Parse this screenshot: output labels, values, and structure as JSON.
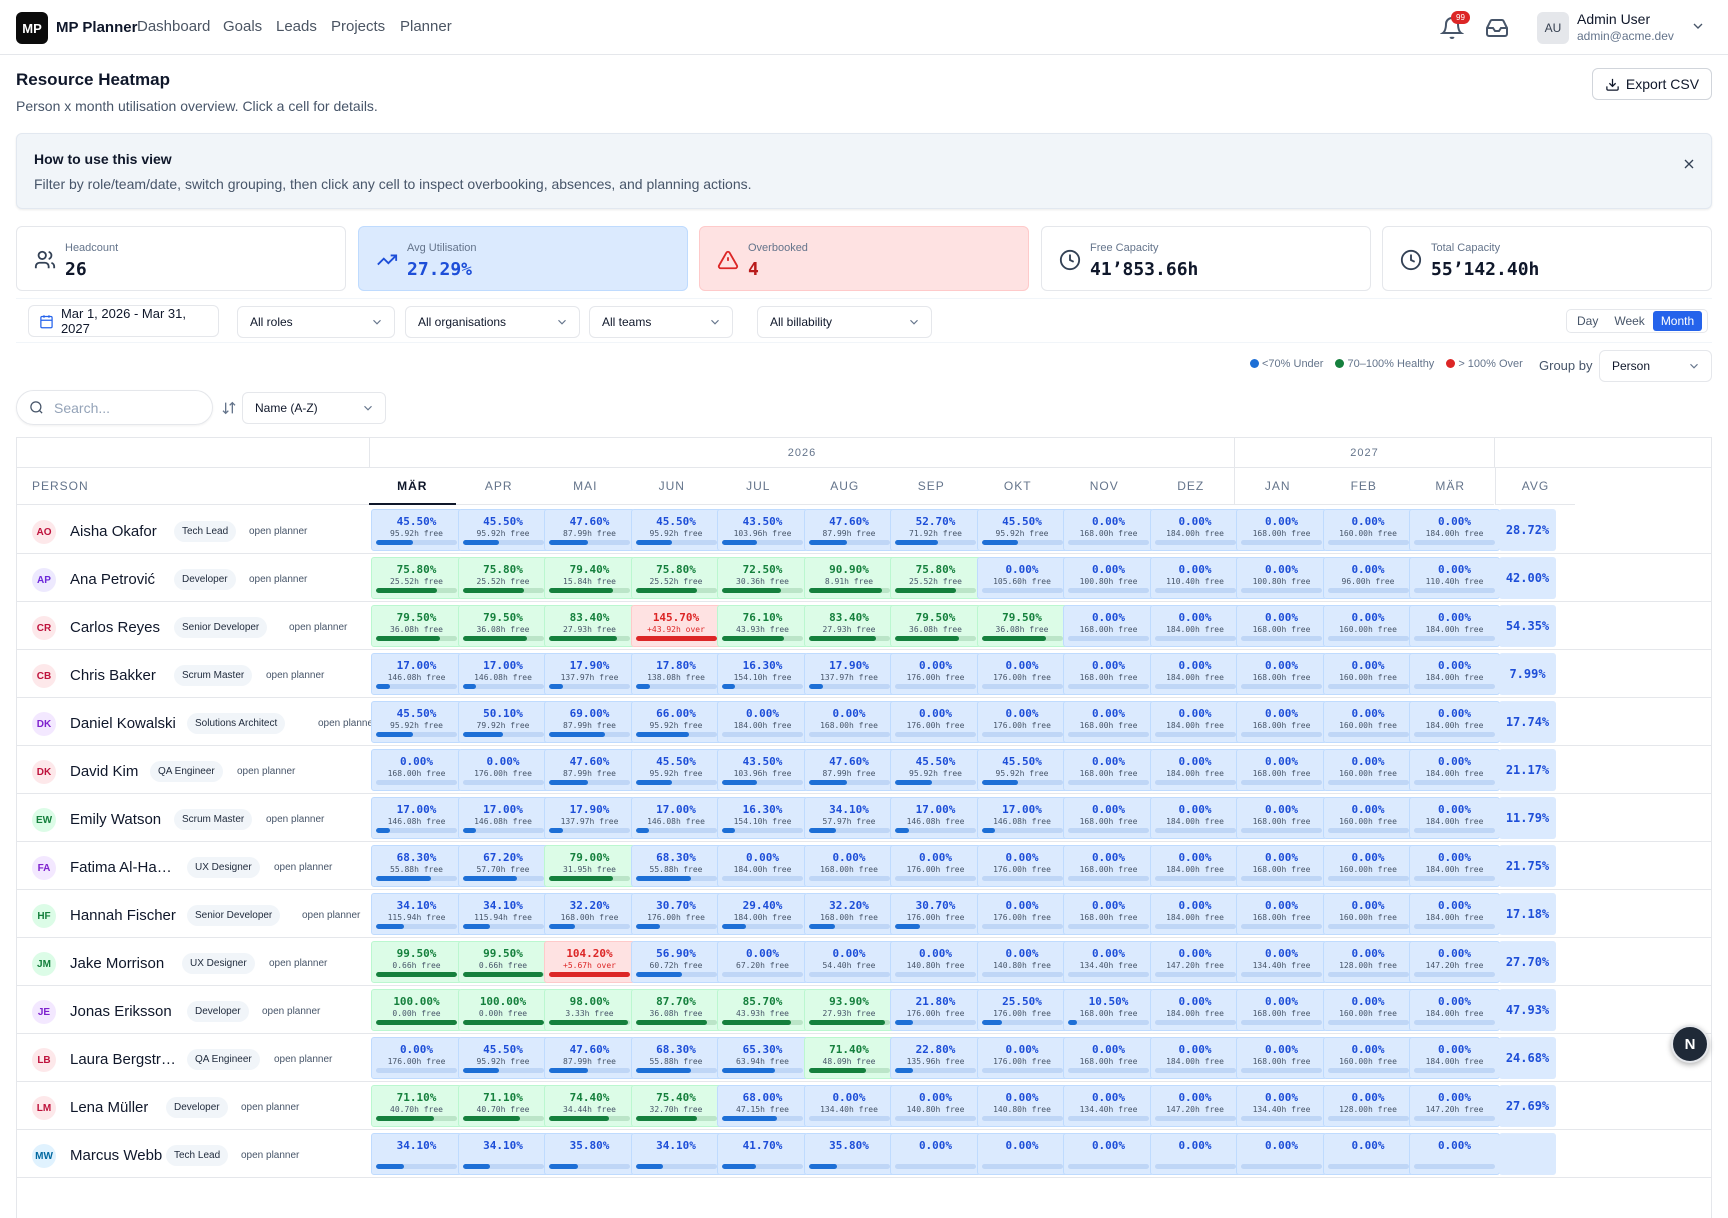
{
  "nav": {
    "logo": "MP",
    "brand": "MP Planner",
    "links": [
      "Dashboard",
      "Goals",
      "Leads",
      "Projects",
      "Planner"
    ],
    "bell_badge": "99",
    "user_initials": "AU",
    "user_name": "Admin User",
    "user_email": "admin@acme.dev"
  },
  "page": {
    "title": "Resource Heatmap",
    "subtitle": "Person x month utilisation overview. Click a cell for details.",
    "export_label": "Export CSV"
  },
  "tip": {
    "title": "How to use this view",
    "body": "Filter by role/team/date, switch grouping, then click any cell to inspect overbooking, absences, and planning actions."
  },
  "kpis": [
    {
      "label": "Headcount",
      "value": "26",
      "icon": "users-icon",
      "tone": "plain"
    },
    {
      "label": "Avg Utilisation",
      "value": "27.29%",
      "icon": "trending-up-icon",
      "tone": "blue"
    },
    {
      "label": "Overbooked",
      "value": "4",
      "icon": "alert-triangle-icon",
      "tone": "red"
    },
    {
      "label": "Free Capacity",
      "value": "41’853.66h",
      "icon": "clock-icon",
      "tone": "plain"
    },
    {
      "label": "Total Capacity",
      "value": "55’142.40h",
      "icon": "clock-icon",
      "tone": "plain"
    }
  ],
  "filters": {
    "date_range": "Mar 1, 2026 - Mar 31, 2027",
    "roles": "All roles",
    "organisations": "All organisations",
    "teams": "All teams",
    "billability": "All billability",
    "views": [
      "Day",
      "Week",
      "Month"
    ],
    "active_view": "Month"
  },
  "legend": {
    "under": "<70% Under",
    "healthy": "70–100% Healthy",
    "over": "> 100% Over",
    "colors": {
      "under": "#1d6fd6",
      "healthy": "#15803d",
      "over": "#dc2626"
    }
  },
  "group_by": {
    "label": "Group by",
    "value": "Person"
  },
  "search": {
    "placeholder": "Search..."
  },
  "sort": {
    "value": "Name (A-Z)"
  },
  "table": {
    "years": [
      "2026",
      "2027"
    ],
    "person_header": "PERSON",
    "months": [
      "MÄR",
      "APR",
      "MAI",
      "JUN",
      "JUL",
      "AUG",
      "SEP",
      "OKT",
      "NOV",
      "DEZ",
      "JAN",
      "FEB",
      "MÄR"
    ],
    "avg_header": "AVG",
    "open_label": "open planner",
    "rows": [
      {
        "initials": "AO",
        "name": "Aisha Okafor",
        "role": "Tech Lead",
        "avg": "28.72%",
        "cells": [
          [
            "45.50%",
            "95.92h free"
          ],
          [
            "45.50%",
            "95.92h free"
          ],
          [
            "47.60%",
            "87.99h free"
          ],
          [
            "45.50%",
            "95.92h free"
          ],
          [
            "43.50%",
            "103.96h free"
          ],
          [
            "47.60%",
            "87.99h free"
          ],
          [
            "52.70%",
            "71.92h free"
          ],
          [
            "45.50%",
            "95.92h free"
          ],
          [
            "0.00%",
            "168.00h free"
          ],
          [
            "0.00%",
            "184.00h free"
          ],
          [
            "0.00%",
            "168.00h free"
          ],
          [
            "0.00%",
            "160.00h free"
          ],
          [
            "0.00%",
            "184.00h free"
          ]
        ]
      },
      {
        "initials": "AP",
        "name": "Ana Petrović",
        "role": "Developer",
        "avg": "42.00%",
        "cells": [
          [
            "75.80%",
            "25.52h free"
          ],
          [
            "75.80%",
            "25.52h free"
          ],
          [
            "79.40%",
            "15.84h free"
          ],
          [
            "75.80%",
            "25.52h free"
          ],
          [
            "72.50%",
            "30.36h free"
          ],
          [
            "90.90%",
            "8.91h free"
          ],
          [
            "75.80%",
            "25.52h free"
          ],
          [
            "0.00%",
            "105.60h free"
          ],
          [
            "0.00%",
            "100.80h free"
          ],
          [
            "0.00%",
            "110.40h free"
          ],
          [
            "0.00%",
            "100.80h free"
          ],
          [
            "0.00%",
            "96.00h free"
          ],
          [
            "0.00%",
            "110.40h free"
          ]
        ]
      },
      {
        "initials": "CR",
        "name": "Carlos Reyes",
        "role": "Senior Developer",
        "avg": "54.35%",
        "cells": [
          [
            "79.50%",
            "36.08h free"
          ],
          [
            "79.50%",
            "36.08h free"
          ],
          [
            "83.40%",
            "27.93h free"
          ],
          [
            "145.70%",
            "+43.92h over"
          ],
          [
            "76.10%",
            "43.93h free"
          ],
          [
            "83.40%",
            "27.93h free"
          ],
          [
            "79.50%",
            "36.08h free"
          ],
          [
            "79.50%",
            "36.08h free"
          ],
          [
            "0.00%",
            "168.00h free"
          ],
          [
            "0.00%",
            "184.00h free"
          ],
          [
            "0.00%",
            "168.00h free"
          ],
          [
            "0.00%",
            "160.00h free"
          ],
          [
            "0.00%",
            "184.00h free"
          ]
        ]
      },
      {
        "initials": "CB",
        "name": "Chris Bakker",
        "role": "Scrum Master",
        "avg": "7.99%",
        "cells": [
          [
            "17.00%",
            "146.08h free"
          ],
          [
            "17.00%",
            "146.08h free"
          ],
          [
            "17.90%",
            "137.97h free"
          ],
          [
            "17.80%",
            "138.08h free"
          ],
          [
            "16.30%",
            "154.10h free"
          ],
          [
            "17.90%",
            "137.97h free"
          ],
          [
            "0.00%",
            "176.00h free"
          ],
          [
            "0.00%",
            "176.00h free"
          ],
          [
            "0.00%",
            "168.00h free"
          ],
          [
            "0.00%",
            "184.00h free"
          ],
          [
            "0.00%",
            "168.00h free"
          ],
          [
            "0.00%",
            "160.00h free"
          ],
          [
            "0.00%",
            "184.00h free"
          ]
        ]
      },
      {
        "initials": "DK",
        "name": "Daniel Kowalski",
        "role": "Solutions Architect",
        "avg": "17.74%",
        "cells": [
          [
            "45.50%",
            "95.92h free"
          ],
          [
            "50.10%",
            "79.92h free"
          ],
          [
            "69.00%",
            "87.99h free"
          ],
          [
            "66.00%",
            "95.92h free"
          ],
          [
            "0.00%",
            "184.00h free"
          ],
          [
            "0.00%",
            "168.00h free"
          ],
          [
            "0.00%",
            "176.00h free"
          ],
          [
            "0.00%",
            "176.00h free"
          ],
          [
            "0.00%",
            "168.00h free"
          ],
          [
            "0.00%",
            "184.00h free"
          ],
          [
            "0.00%",
            "168.00h free"
          ],
          [
            "0.00%",
            "160.00h free"
          ],
          [
            "0.00%",
            "184.00h free"
          ]
        ]
      },
      {
        "initials": "DK",
        "name": "David Kim",
        "role": "QA Engineer",
        "avg": "21.17%",
        "cells": [
          [
            "0.00%",
            "168.00h free"
          ],
          [
            "0.00%",
            "176.00h free"
          ],
          [
            "47.60%",
            "87.99h free"
          ],
          [
            "45.50%",
            "95.92h free"
          ],
          [
            "43.50%",
            "103.96h free"
          ],
          [
            "47.60%",
            "87.99h free"
          ],
          [
            "45.50%",
            "95.92h free"
          ],
          [
            "45.50%",
            "95.92h free"
          ],
          [
            "0.00%",
            "168.00h free"
          ],
          [
            "0.00%",
            "184.00h free"
          ],
          [
            "0.00%",
            "168.00h free"
          ],
          [
            "0.00%",
            "160.00h free"
          ],
          [
            "0.00%",
            "184.00h free"
          ]
        ]
      },
      {
        "initials": "EW",
        "name": "Emily Watson",
        "role": "Scrum Master",
        "avg": "11.79%",
        "cells": [
          [
            "17.00%",
            "146.08h free"
          ],
          [
            "17.00%",
            "146.08h free"
          ],
          [
            "17.90%",
            "137.97h free"
          ],
          [
            "17.00%",
            "146.08h free"
          ],
          [
            "16.30%",
            "154.10h free"
          ],
          [
            "34.10%",
            "57.97h free"
          ],
          [
            "17.00%",
            "146.08h free"
          ],
          [
            "17.00%",
            "146.08h free"
          ],
          [
            "0.00%",
            "168.00h free"
          ],
          [
            "0.00%",
            "184.00h free"
          ],
          [
            "0.00%",
            "168.00h free"
          ],
          [
            "0.00%",
            "160.00h free"
          ],
          [
            "0.00%",
            "184.00h free"
          ]
        ]
      },
      {
        "initials": "FA",
        "name": "Fatima Al-Hassan",
        "role": "UX Designer",
        "avg": "21.75%",
        "cells": [
          [
            "68.30%",
            "55.88h free"
          ],
          [
            "67.20%",
            "57.70h free"
          ],
          [
            "79.00%",
            "31.95h free"
          ],
          [
            "68.30%",
            "55.88h free"
          ],
          [
            "0.00%",
            "184.00h free"
          ],
          [
            "0.00%",
            "168.00h free"
          ],
          [
            "0.00%",
            "176.00h free"
          ],
          [
            "0.00%",
            "176.00h free"
          ],
          [
            "0.00%",
            "168.00h free"
          ],
          [
            "0.00%",
            "184.00h free"
          ],
          [
            "0.00%",
            "168.00h free"
          ],
          [
            "0.00%",
            "160.00h free"
          ],
          [
            "0.00%",
            "184.00h free"
          ]
        ]
      },
      {
        "initials": "HF",
        "name": "Hannah Fischer",
        "role": "Senior Developer",
        "avg": "17.18%",
        "cells": [
          [
            "34.10%",
            "115.94h free"
          ],
          [
            "34.10%",
            "115.94h free"
          ],
          [
            "32.20%",
            "168.00h free"
          ],
          [
            "30.70%",
            "176.00h free"
          ],
          [
            "29.40%",
            "184.00h free"
          ],
          [
            "32.20%",
            "168.00h free"
          ],
          [
            "30.70%",
            "176.00h free"
          ],
          [
            "0.00%",
            "176.00h free"
          ],
          [
            "0.00%",
            "168.00h free"
          ],
          [
            "0.00%",
            "184.00h free"
          ],
          [
            "0.00%",
            "168.00h free"
          ],
          [
            "0.00%",
            "160.00h free"
          ],
          [
            "0.00%",
            "184.00h free"
          ]
        ]
      },
      {
        "initials": "JM",
        "name": "Jake Morrison",
        "role": "UX Designer",
        "avg": "27.70%",
        "cells": [
          [
            "99.50%",
            "0.66h free"
          ],
          [
            "99.50%",
            "0.66h free"
          ],
          [
            "104.20%",
            "+5.67h over"
          ],
          [
            "56.90%",
            "60.72h free"
          ],
          [
            "0.00%",
            "67.20h free"
          ],
          [
            "0.00%",
            "54.40h free"
          ],
          [
            "0.00%",
            "140.80h free"
          ],
          [
            "0.00%",
            "140.80h free"
          ],
          [
            "0.00%",
            "134.40h free"
          ],
          [
            "0.00%",
            "147.20h free"
          ],
          [
            "0.00%",
            "134.40h free"
          ],
          [
            "0.00%",
            "128.00h free"
          ],
          [
            "0.00%",
            "147.20h free"
          ]
        ]
      },
      {
        "initials": "JE",
        "name": "Jonas Eriksson",
        "role": "Developer",
        "avg": "47.93%",
        "cells": [
          [
            "100.00%",
            "0.00h free"
          ],
          [
            "100.00%",
            "0.00h free"
          ],
          [
            "98.00%",
            "3.33h free"
          ],
          [
            "87.70%",
            "36.08h free"
          ],
          [
            "85.70%",
            "43.93h free"
          ],
          [
            "93.90%",
            "27.93h free"
          ],
          [
            "21.80%",
            "176.00h free"
          ],
          [
            "25.50%",
            "176.00h free"
          ],
          [
            "10.50%",
            "168.00h free"
          ],
          [
            "0.00%",
            "184.00h free"
          ],
          [
            "0.00%",
            "168.00h free"
          ],
          [
            "0.00%",
            "160.00h free"
          ],
          [
            "0.00%",
            "184.00h free"
          ]
        ]
      },
      {
        "initials": "LB",
        "name": "Laura Bergström",
        "role": "QA Engineer",
        "avg": "24.68%",
        "cells": [
          [
            "0.00%",
            "176.00h free"
          ],
          [
            "45.50%",
            "95.92h free"
          ],
          [
            "47.60%",
            "87.99h free"
          ],
          [
            "68.30%",
            "55.88h free"
          ],
          [
            "65.30%",
            "63.94h free"
          ],
          [
            "71.40%",
            "48.09h free"
          ],
          [
            "22.80%",
            "135.96h free"
          ],
          [
            "0.00%",
            "176.00h free"
          ],
          [
            "0.00%",
            "168.00h free"
          ],
          [
            "0.00%",
            "184.00h free"
          ],
          [
            "0.00%",
            "168.00h free"
          ],
          [
            "0.00%",
            "160.00h free"
          ],
          [
            "0.00%",
            "184.00h free"
          ]
        ]
      },
      {
        "initials": "LM",
        "name": "Lena Müller",
        "role": "Developer",
        "avg": "27.69%",
        "cells": [
          [
            "71.10%",
            "40.70h free"
          ],
          [
            "71.10%",
            "40.70h free"
          ],
          [
            "74.40%",
            "34.44h free"
          ],
          [
            "75.40%",
            "32.70h free"
          ],
          [
            "68.00%",
            "47.15h free"
          ],
          [
            "0.00%",
            "134.40h free"
          ],
          [
            "0.00%",
            "140.80h free"
          ],
          [
            "0.00%",
            "140.80h free"
          ],
          [
            "0.00%",
            "134.40h free"
          ],
          [
            "0.00%",
            "147.20h free"
          ],
          [
            "0.00%",
            "134.40h free"
          ],
          [
            "0.00%",
            "128.00h free"
          ],
          [
            "0.00%",
            "147.20h free"
          ]
        ]
      },
      {
        "initials": "MW",
        "name": "Marcus Webb",
        "role": "Tech Lead",
        "avg": "",
        "cells": [
          [
            "34.10%",
            ""
          ],
          [
            "34.10%",
            ""
          ],
          [
            "35.80%",
            ""
          ],
          [
            "34.10%",
            ""
          ],
          [
            "41.70%",
            ""
          ],
          [
            "35.80%",
            ""
          ],
          [
            "0.00%",
            ""
          ],
          [
            "0.00%",
            ""
          ],
          [
            "0.00%",
            ""
          ],
          [
            "0.00%",
            ""
          ],
          [
            "0.00%",
            ""
          ],
          [
            "0.00%",
            ""
          ],
          [
            "0.00%",
            ""
          ]
        ]
      }
    ]
  },
  "fab_label": "N"
}
